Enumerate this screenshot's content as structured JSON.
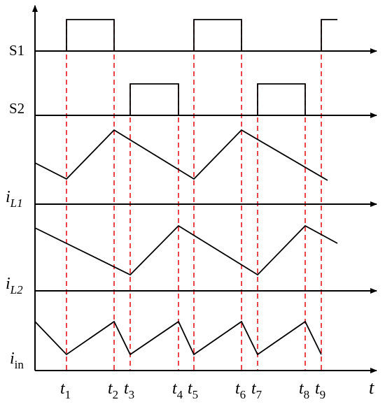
{
  "diagram": {
    "time_axis_label": "t",
    "row_labels": {
      "s1": "S1",
      "s2": "S2",
      "il1_main": "i",
      "il1_sub": "L1",
      "il2_main": "i",
      "il2_sub": "L2",
      "iin_main": "i",
      "iin_sub": "in"
    },
    "time_marks": [
      {
        "main": "t",
        "sub": "1"
      },
      {
        "main": "t",
        "sub": "2"
      },
      {
        "main": "t",
        "sub": "3"
      },
      {
        "main": "t",
        "sub": "4"
      },
      {
        "main": "t",
        "sub": "5"
      },
      {
        "main": "t",
        "sub": "6"
      },
      {
        "main": "t",
        "sub": "7"
      },
      {
        "main": "t",
        "sub": "8"
      },
      {
        "main": "t",
        "sub": "9"
      }
    ],
    "colors": {
      "trace": "#000000",
      "guide_lines": "#e8151b"
    }
  }
}
